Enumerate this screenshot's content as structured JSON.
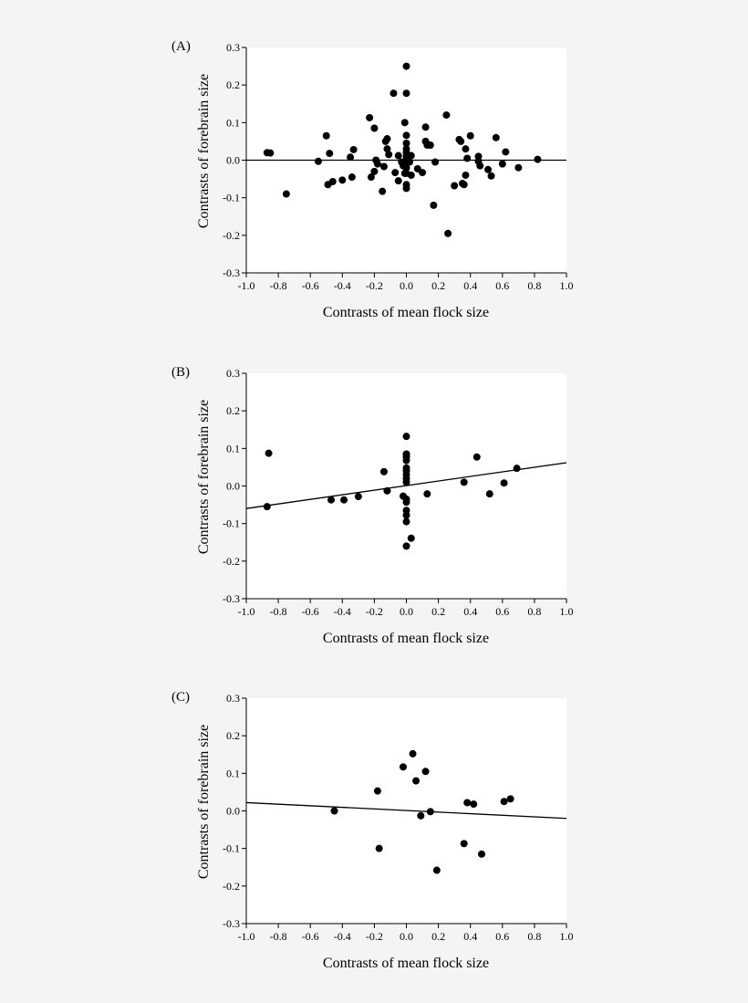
{
  "chart_data": [
    {
      "type": "scatter",
      "panel_label": "(A)",
      "xlabel": "Contrasts of mean flock size",
      "ylabel": "Contrasts of forebrain size",
      "xlim": [
        -1.0,
        1.0
      ],
      "ylim": [
        -0.3,
        0.3
      ],
      "xticks": [
        "-1.0",
        "-0.8",
        "-0.6",
        "-0.4",
        "-0.2",
        "0.0",
        "0.2",
        "0.4",
        "0.6",
        "0.8",
        "1.0"
      ],
      "yticks": [
        "0.3",
        "0.2",
        "0.1",
        "0.0",
        "-0.1",
        "-0.2",
        "-0.3"
      ],
      "fit_line": {
        "x": [
          -1.0,
          1.0
        ],
        "y": [
          0.0,
          0.0
        ]
      },
      "points": [
        [
          -0.87,
          0.02
        ],
        [
          -0.85,
          0.019
        ],
        [
          -0.75,
          -0.09
        ],
        [
          -0.55,
          -0.003
        ],
        [
          -0.5,
          0.065
        ],
        [
          -0.48,
          0.018
        ],
        [
          -0.49,
          -0.065
        ],
        [
          -0.46,
          -0.057
        ],
        [
          -0.4,
          -0.053
        ],
        [
          -0.35,
          0.008
        ],
        [
          -0.33,
          0.028
        ],
        [
          -0.34,
          -0.045
        ],
        [
          -0.23,
          0.113
        ],
        [
          -0.2,
          0.085
        ],
        [
          -0.22,
          -0.045
        ],
        [
          -0.2,
          -0.03
        ],
        [
          -0.19,
          0.0
        ],
        [
          -0.18,
          -0.01
        ],
        [
          -0.15,
          -0.083
        ],
        [
          -0.14,
          -0.017
        ],
        [
          -0.13,
          0.05
        ],
        [
          -0.12,
          0.057
        ],
        [
          -0.12,
          0.03
        ],
        [
          -0.11,
          0.015
        ],
        [
          -0.08,
          0.178
        ],
        [
          -0.07,
          -0.033
        ],
        [
          -0.05,
          0.012
        ],
        [
          -0.05,
          -0.055
        ],
        [
          -0.01,
          0.1
        ],
        [
          0.0,
          0.25
        ],
        [
          0.0,
          0.178
        ],
        [
          0.0,
          0.066
        ],
        [
          0.0,
          0.045
        ],
        [
          0.0,
          0.03
        ],
        [
          0.0,
          0.02
        ],
        [
          0.0,
          0.01
        ],
        [
          0.0,
          0.0
        ],
        [
          0.0,
          -0.01
        ],
        [
          0.0,
          -0.02
        ],
        [
          0.0,
          -0.035
        ],
        [
          0.0,
          -0.065
        ],
        [
          0.0,
          -0.075
        ],
        [
          0.02,
          -0.005
        ],
        [
          0.03,
          0.012
        ],
        [
          0.03,
          -0.04
        ],
        [
          -0.03,
          -0.005
        ],
        [
          -0.02,
          -0.015
        ],
        [
          -0.01,
          -0.035
        ],
        [
          0.07,
          -0.023
        ],
        [
          0.1,
          -0.033
        ],
        [
          0.12,
          0.088
        ],
        [
          0.12,
          0.05
        ],
        [
          0.13,
          0.04
        ],
        [
          0.15,
          0.04
        ],
        [
          0.18,
          -0.005
        ],
        [
          0.17,
          -0.12
        ],
        [
          0.25,
          0.12
        ],
        [
          0.26,
          -0.195
        ],
        [
          0.3,
          -0.068
        ],
        [
          0.33,
          0.055
        ],
        [
          0.34,
          0.05
        ],
        [
          0.36,
          -0.065
        ],
        [
          0.37,
          0.03
        ],
        [
          0.38,
          0.005
        ],
        [
          0.37,
          -0.04
        ],
        [
          0.35,
          -0.062
        ],
        [
          0.4,
          0.065
        ],
        [
          0.45,
          0.01
        ],
        [
          0.45,
          -0.003
        ],
        [
          0.46,
          -0.015
        ],
        [
          0.51,
          -0.025
        ],
        [
          0.53,
          -0.042
        ],
        [
          0.56,
          0.06
        ],
        [
          0.6,
          -0.01
        ],
        [
          0.62,
          0.022
        ],
        [
          0.7,
          -0.02
        ],
        [
          0.82,
          0.002
        ]
      ]
    },
    {
      "type": "scatter",
      "panel_label": "(B)",
      "xlabel": "Contrasts of mean flock size",
      "ylabel": "Contrasts of forebrain size",
      "xlim": [
        -1.0,
        1.0
      ],
      "ylim": [
        -0.3,
        0.3
      ],
      "xticks": [
        "-1.0",
        "-0.8",
        "-0.6",
        "-0.4",
        "-0.2",
        "0.0",
        "0.2",
        "0.4",
        "0.6",
        "0.8",
        "1.0"
      ],
      "yticks": [
        "0.3",
        "0.2",
        "0.1",
        "0.0",
        "-0.1",
        "-0.2",
        "-0.3"
      ],
      "fit_line": {
        "x": [
          -1.0,
          1.0
        ],
        "y": [
          -0.06,
          0.062
        ]
      },
      "points": [
        [
          -0.86,
          0.087
        ],
        [
          -0.87,
          -0.055
        ],
        [
          -0.47,
          -0.037
        ],
        [
          -0.39,
          -0.037
        ],
        [
          -0.3,
          -0.028
        ],
        [
          -0.14,
          0.038
        ],
        [
          -0.12,
          -0.013
        ],
        [
          0.0,
          0.132
        ],
        [
          0.0,
          0.085
        ],
        [
          0.0,
          0.078
        ],
        [
          0.0,
          0.068
        ],
        [
          0.0,
          0.048
        ],
        [
          0.0,
          0.04
        ],
        [
          0.0,
          0.03
        ],
        [
          0.0,
          0.02
        ],
        [
          0.0,
          0.01
        ],
        [
          -0.02,
          -0.027
        ],
        [
          0.0,
          -0.035
        ],
        [
          0.0,
          -0.043
        ],
        [
          0.0,
          -0.065
        ],
        [
          0.0,
          -0.078
        ],
        [
          0.0,
          -0.095
        ],
        [
          0.0,
          -0.16
        ],
        [
          0.03,
          -0.139
        ],
        [
          0.13,
          -0.021
        ],
        [
          0.36,
          0.01
        ],
        [
          0.44,
          0.077
        ],
        [
          0.52,
          -0.021
        ],
        [
          0.61,
          0.008
        ],
        [
          0.69,
          0.047
        ]
      ]
    },
    {
      "type": "scatter",
      "panel_label": "(C)",
      "xlabel": "Contrasts of mean flock size",
      "ylabel": "Contrasts of forebrain size",
      "xlim": [
        -1.0,
        1.0
      ],
      "ylim": [
        -0.3,
        0.3
      ],
      "xticks": [
        "-1.0",
        "-0.8",
        "-0.6",
        "-0.4",
        "-0.2",
        "0.0",
        "0.2",
        "0.4",
        "0.6",
        "0.8",
        "1.0"
      ],
      "yticks": [
        "0.3",
        "0.2",
        "0.1",
        "0.0",
        "-0.1",
        "-0.2",
        "-0.3"
      ],
      "fit_line": {
        "x": [
          -1.0,
          1.0
        ],
        "y": [
          0.022,
          -0.02
        ]
      },
      "points": [
        [
          -0.45,
          0.0
        ],
        [
          -0.18,
          0.053
        ],
        [
          -0.17,
          -0.1
        ],
        [
          -0.02,
          0.117
        ],
        [
          0.04,
          0.152
        ],
        [
          0.06,
          0.08
        ],
        [
          0.09,
          -0.013
        ],
        [
          0.12,
          0.105
        ],
        [
          0.15,
          -0.002
        ],
        [
          0.19,
          -0.158
        ],
        [
          0.36,
          -0.087
        ],
        [
          0.38,
          0.022
        ],
        [
          0.42,
          0.018
        ],
        [
          0.47,
          -0.115
        ],
        [
          0.61,
          0.025
        ],
        [
          0.65,
          0.032
        ]
      ]
    }
  ]
}
